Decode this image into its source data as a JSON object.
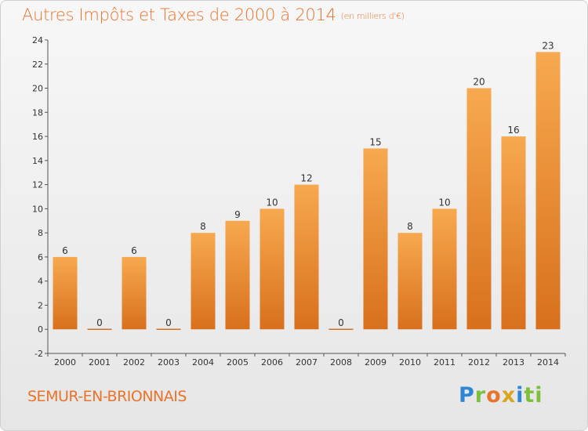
{
  "header": {
    "title": "Autres Impôts et Taxes de 2000 à 2014",
    "unit": "(en milliers d'€)"
  },
  "footer": {
    "commune": "SEMUR-EN-BRIONNAIS",
    "logo_letters": [
      "P",
      "r",
      "o",
      "x",
      "i",
      "ti"
    ]
  },
  "colors": {
    "bar_light": "#f7a950",
    "bar_dark": "#d8701c",
    "title": "#e8742c"
  },
  "chart_data": {
    "type": "bar",
    "title": "Autres Impôts et Taxes de 2000 à 2014",
    "subtitle": "(en milliers d'€)",
    "categories": [
      "2000",
      "2001",
      "2002",
      "2003",
      "2004",
      "2005",
      "2006",
      "2007",
      "2008",
      "2009",
      "2010",
      "2011",
      "2012",
      "2013",
      "2014"
    ],
    "values": [
      6,
      0,
      6,
      0,
      8,
      9,
      10,
      12,
      0,
      15,
      8,
      10,
      20,
      16,
      23
    ],
    "ylim": [
      -2,
      24
    ],
    "yticks": [
      -2,
      0,
      2,
      4,
      6,
      8,
      10,
      12,
      14,
      16,
      18,
      20,
      22,
      24
    ],
    "grid": false,
    "legend": "none"
  }
}
